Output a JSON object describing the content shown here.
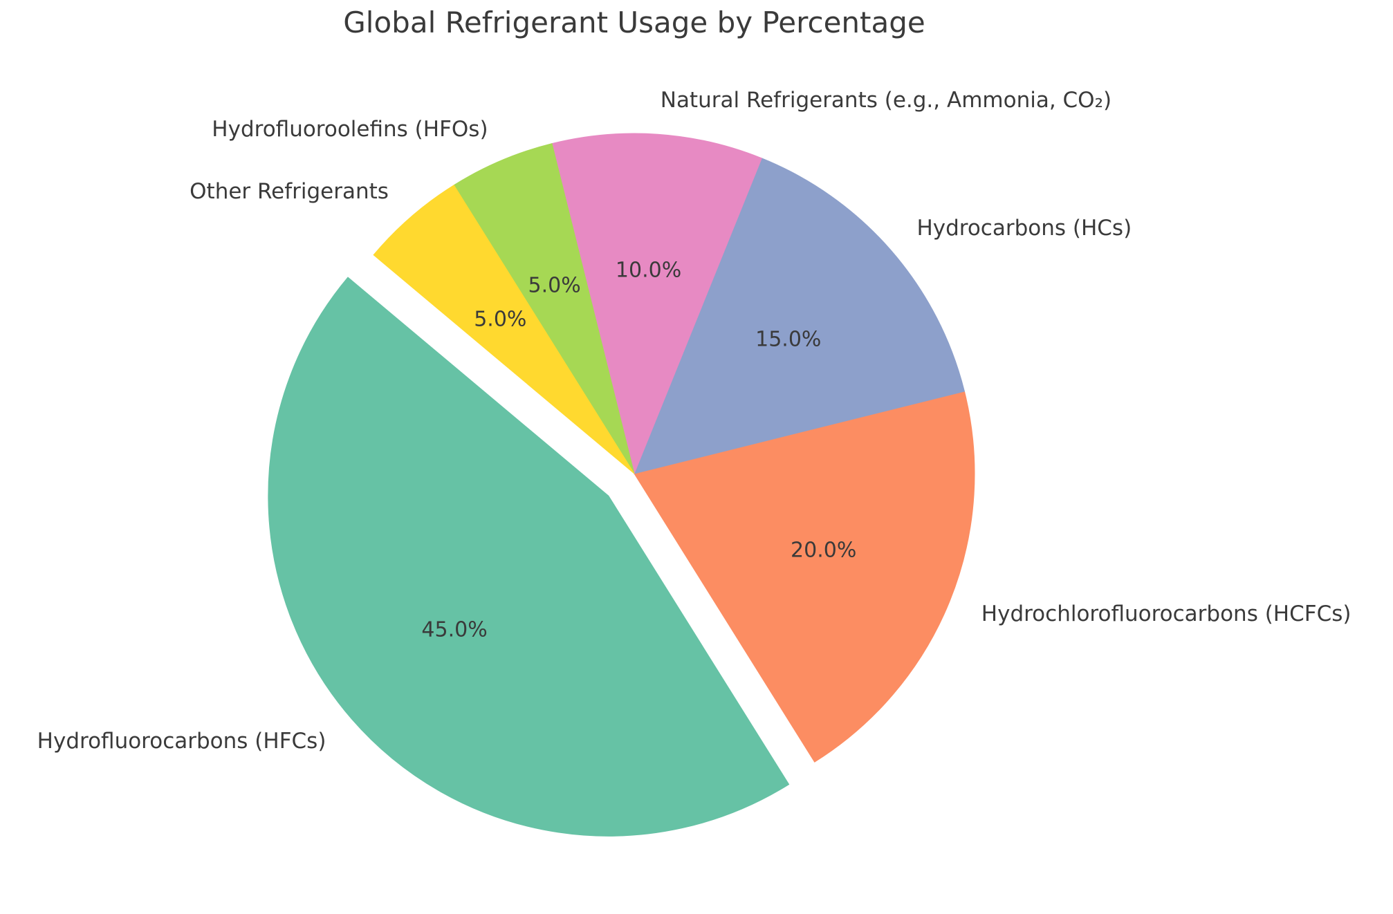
{
  "title": "Global Refrigerant Usage by Percentage",
  "chart_data": {
    "type": "pie",
    "title": "Global Refrigerant Usage by Percentage",
    "labels": [
      "Hydrofluorocarbons (HFCs)",
      "Hydrochlorofluorocarbons (HCFCs)",
      "Hydrocarbons (HCs)",
      "Natural Refrigerants (e.g., Ammonia, CO₂)",
      "Hydrofluoroolefins (HFOs)",
      "Other Refrigerants"
    ],
    "values": [
      45,
      20,
      15,
      10,
      5,
      5
    ],
    "percent_labels": [
      "45.0%",
      "20.0%",
      "15.0%",
      "10.0%",
      "5.0%",
      "5.0%"
    ],
    "colors": [
      "#66c2a5",
      "#fc8d62",
      "#8da0cb",
      "#e78ac3",
      "#a6d854",
      "#ffd92f"
    ],
    "explode": [
      0.1,
      0,
      0,
      0,
      0,
      0
    ],
    "startangle": 140,
    "counterclock": true,
    "legend_position": "none",
    "background": "#ffffff",
    "text_color": "#3a3a3a"
  }
}
